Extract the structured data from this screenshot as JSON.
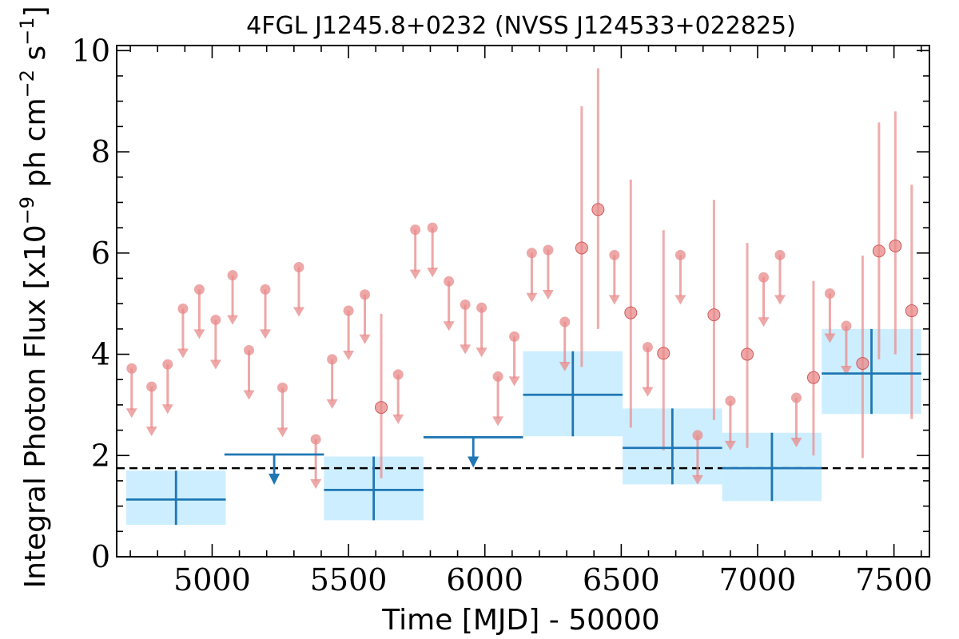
{
  "chart_data": {
    "type": "scatter",
    "title": "4FGL J1245.8+0232 (NVSS J124533+022825)",
    "xlabel": "Time [MJD] - 50000",
    "ylabel_main": "Integral Photon Flux [x10",
    "ylabel_exp1": "−9",
    "ylabel_mid": " ph cm",
    "ylabel_exp2": "−2",
    "ylabel_mid2": " s",
    "ylabel_exp3": "−1",
    "ylabel_end": "]",
    "xlim": [
      4650,
      7630
    ],
    "ylim": [
      0,
      10.1
    ],
    "xticks": [
      5000,
      5500,
      6000,
      6500,
      7000,
      7500
    ],
    "yticks": [
      0,
      2,
      4,
      6,
      8,
      10
    ],
    "xtick_labels": [
      "5000",
      "5500",
      "6000",
      "6500",
      "7000",
      "7500"
    ],
    "ytick_labels": [
      "0",
      "2",
      "4",
      "6",
      "8",
      "10"
    ],
    "reference_line_y": 1.75,
    "colors": {
      "short_bins": "#e88a8a",
      "long_bins": "#1f77b4",
      "long_bins_fill": "#cdeeff",
      "reference": "#000000"
    },
    "short_bin_upper_limits": [
      [
        4705,
        3.72
      ],
      [
        4778,
        3.36
      ],
      [
        4837,
        3.8
      ],
      [
        4893,
        4.9
      ],
      [
        4953,
        5.28
      ],
      [
        5013,
        4.68
      ],
      [
        5075,
        5.56
      ],
      [
        5135,
        4.08
      ],
      [
        5195,
        5.28
      ],
      [
        5258,
        3.34
      ],
      [
        5318,
        5.72
      ],
      [
        5380,
        2.32
      ],
      [
        5440,
        3.9
      ],
      [
        5500,
        4.86
      ],
      [
        5560,
        5.18
      ],
      [
        5682,
        3.6
      ],
      [
        5745,
        6.46
      ],
      [
        5808,
        6.5
      ],
      [
        5868,
        5.44
      ],
      [
        5928,
        4.98
      ],
      [
        5988,
        4.92
      ],
      [
        6048,
        3.56
      ],
      [
        6108,
        4.35
      ],
      [
        6172,
        6.0
      ],
      [
        6232,
        6.06
      ],
      [
        6293,
        4.64
      ],
      [
        6475,
        5.96
      ],
      [
        6597,
        4.14
      ],
      [
        6717,
        5.96
      ],
      [
        6780,
        2.4
      ],
      [
        6900,
        3.08
      ],
      [
        7022,
        5.52
      ],
      [
        7082,
        5.96
      ],
      [
        7142,
        3.14
      ],
      [
        7265,
        5.2
      ],
      [
        7325,
        4.56
      ]
    ],
    "short_bin_detections": [
      [
        5620,
        2.95,
        1.55,
        4.8
      ],
      [
        6355,
        6.1,
        3.75,
        8.9
      ],
      [
        6415,
        6.86,
        4.5,
        9.65
      ],
      [
        6535,
        4.82,
        2.55,
        7.45
      ],
      [
        6655,
        4.02,
        2.1,
        6.45
      ],
      [
        6840,
        4.78,
        2.7,
        7.05
      ],
      [
        6962,
        4.0,
        2.15,
        6.2
      ],
      [
        7205,
        3.54,
        2.0,
        5.45
      ],
      [
        7385,
        3.82,
        1.95,
        5.95
      ],
      [
        7445,
        6.04,
        3.9,
        8.58
      ],
      [
        7505,
        6.14,
        4.0,
        8.8
      ],
      [
        7565,
        4.86,
        2.72,
        7.35
      ]
    ],
    "long_bin_detections": [
      [
        4685,
        5050,
        1.13,
        0.63,
        1.7
      ],
      [
        5410,
        5775,
        1.32,
        0.72,
        1.98
      ],
      [
        6140,
        6505,
        3.2,
        2.38,
        4.06
      ],
      [
        6505,
        6870,
        2.15,
        1.43,
        2.93
      ],
      [
        6870,
        7235,
        1.75,
        1.1,
        2.45
      ],
      [
        7235,
        7600,
        3.62,
        2.82,
        4.5
      ]
    ],
    "long_bin_upper_limits": [
      [
        5045,
        5410,
        2.02
      ],
      [
        5775,
        6140,
        2.36
      ]
    ]
  }
}
